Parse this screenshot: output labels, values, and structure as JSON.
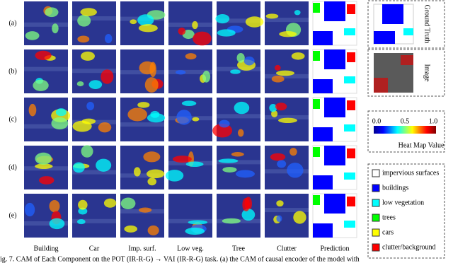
{
  "rows": [
    "(a)",
    "(b)",
    "(c)",
    "(d)",
    "(e)"
  ],
  "columns": [
    "Building",
    "Car",
    "Imp. surf.",
    "Low veg.",
    "Tree",
    "Clutter",
    "Prediction"
  ],
  "side": {
    "ground_truth": "Ground Truth",
    "image": "Image"
  },
  "colorbar": {
    "ticks": [
      "0.0",
      "0.5",
      "1.0"
    ],
    "label": "Heat Map Value"
  },
  "legend": [
    {
      "label": "impervious surfaces",
      "color": "#ffffff"
    },
    {
      "label": "buildings",
      "color": "#0000ff"
    },
    {
      "label": "low vegetation",
      "color": "#00ffff"
    },
    {
      "label": "trees",
      "color": "#00ff00"
    },
    {
      "label": "cars",
      "color": "#ffff00"
    },
    {
      "label": "clutter/background",
      "color": "#ff0000"
    }
  ],
  "caption": "ig. 7. CAM of Each Component on the POT (IR-R-G) → VAI (IR-R-G) task. (a) the CAM of causal encoder of the model with"
}
